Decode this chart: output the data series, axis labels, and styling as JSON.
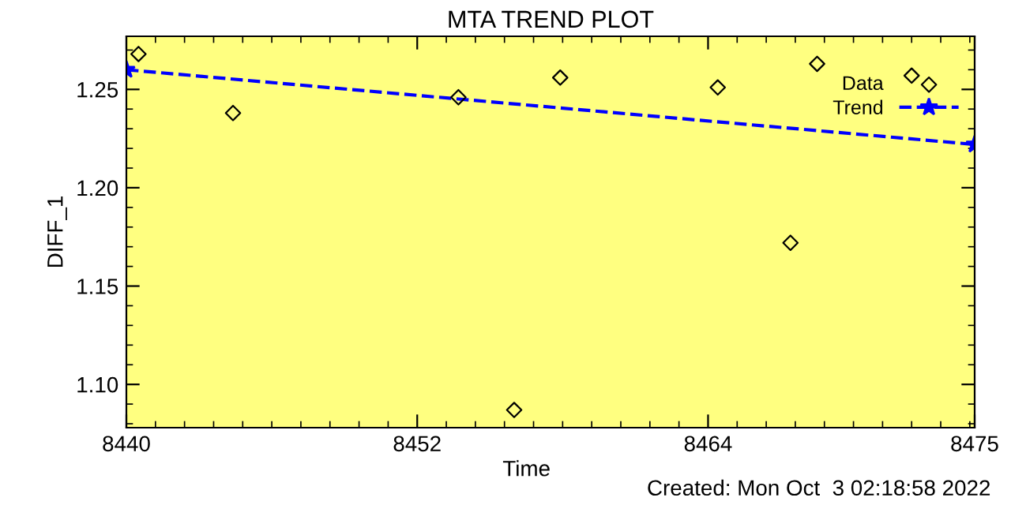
{
  "chart_data": {
    "type": "scatter",
    "title": "MTA TREND PLOT",
    "xlabel": "Time",
    "ylabel": "DIFF_1",
    "annotations": [
      "Created: Mon Oct  3 02:18:58 2022"
    ],
    "xlim": [
      8440,
      8475
    ],
    "xticks": [
      8440,
      8452,
      8464,
      8475
    ],
    "ylim": [
      1.078,
      1.277
    ],
    "yticks": [
      {
        "value": 1.1,
        "label": "1.10"
      },
      {
        "value": 1.15,
        "label": "1.15"
      },
      {
        "value": 1.2,
        "label": "1.20"
      },
      {
        "value": 1.25,
        "label": "1.25"
      }
    ],
    "grid": false,
    "legend": "top right",
    "series": [
      {
        "name": "Data",
        "marker": "diamond",
        "color": "#000000",
        "x": [
          8440.5,
          8444.4,
          8453.7,
          8456.0,
          8457.9,
          8464.4,
          8467.4,
          8468.5,
          8472.4
        ],
        "values": [
          1.268,
          1.238,
          1.246,
          1.087,
          1.256,
          1.251,
          1.172,
          1.263,
          1.257
        ]
      },
      {
        "name": "Trend",
        "type": "line",
        "line_style": "dashed",
        "marker": "star",
        "color": "#0000ff",
        "x": [
          8440,
          8475
        ],
        "values": [
          1.26,
          1.222
        ]
      }
    ]
  }
}
